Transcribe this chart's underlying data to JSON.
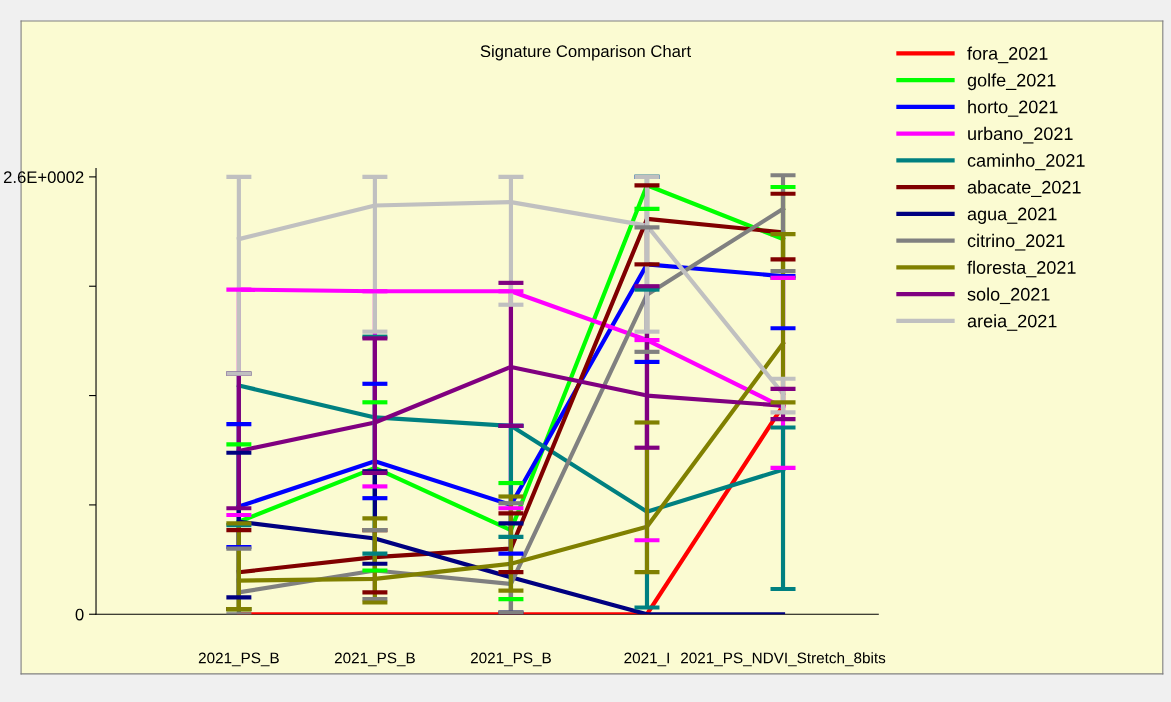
{
  "chart_data": {
    "type": "line",
    "title": "Signature Comparison Chart",
    "categories": [
      "2021_PS_B",
      "2021_PS_B",
      "2021_PS_B",
      "2021_I",
      "2021_PS_NDVI_Stretch_8bits"
    ],
    "ylim": [
      0,
      265
    ],
    "yticks": [
      0,
      {
        "value": 65,
        "label": null
      },
      {
        "value": 130,
        "label": null
      },
      {
        "value": 195,
        "label": null
      },
      {
        "value": 260,
        "label": "2.6E+0002"
      }
    ],
    "grid": false,
    "legend": "top right",
    "series": [
      {
        "name": "fora_2021",
        "color": "#ff0000",
        "values": [
          0,
          0,
          0,
          0,
          124
        ],
        "errors": [
          null,
          null,
          null,
          null,
          null
        ]
      },
      {
        "name": "golfe_2021",
        "color": "#00ff00",
        "values": [
          55,
          87,
          50,
          255,
          223
        ],
        "errors": [
          [
            3,
            101
          ],
          [
            26,
            126
          ],
          [
            9,
            78
          ],
          [
            241,
            260
          ],
          [
            200,
            254
          ]
        ]
      },
      {
        "name": "horto_2021",
        "color": "#0000ff",
        "values": [
          64,
          91,
          65,
          208,
          201
        ],
        "errors": [
          [
            40,
            113
          ],
          [
            69,
            137
          ],
          [
            36,
            112
          ],
          [
            150,
            260
          ],
          [
            170,
            201
          ]
        ]
      },
      {
        "name": "urbano_2021",
        "color": "#ff00ff",
        "values": [
          193,
          192,
          192,
          163,
          123
        ],
        "errors": [
          [
            59,
            193
          ],
          [
            76,
            192
          ],
          [
            63,
            192
          ],
          [
            44,
            163
          ],
          [
            87,
            200
          ]
        ]
      },
      {
        "name": "caminho_2021",
        "color": "#008080",
        "values": [
          136,
          117,
          112,
          61,
          86
        ],
        "errors": [
          [
            53,
            143
          ],
          [
            36,
            165
          ],
          [
            46,
            112
          ],
          [
            4,
            193
          ],
          [
            15,
            111
          ]
        ]
      },
      {
        "name": "abacate_2021",
        "color": "#800000",
        "values": [
          25,
          34,
          39,
          235,
          227
        ],
        "errors": [
          [
            3,
            50
          ],
          [
            13,
            50
          ],
          [
            25,
            60
          ],
          [
            208,
            255
          ],
          [
            211,
            250
          ]
        ]
      },
      {
        "name": "agua_2021",
        "color": "#000080",
        "values": [
          55,
          45,
          22,
          0,
          0
        ],
        "errors": [
          [
            10,
            96
          ],
          [
            30,
            85
          ],
          [
            1,
            54
          ],
          null,
          null
        ]
      },
      {
        "name": "citrino_2021",
        "color": "#808080",
        "values": [
          13,
          26,
          18,
          190,
          241
        ],
        "errors": [
          [
            0,
            39
          ],
          [
            9,
            50
          ],
          [
            1,
            66
          ],
          [
            156,
            230
          ],
          [
            204,
            261
          ]
        ]
      },
      {
        "name": "floresta_2021",
        "color": "#808000",
        "values": [
          20,
          21,
          30,
          52,
          161
        ],
        "errors": [
          [
            3,
            54
          ],
          [
            7,
            57
          ],
          [
            14,
            70
          ],
          [
            25,
            114
          ],
          [
            126,
            226
          ]
        ]
      },
      {
        "name": "solo_2021",
        "color": "#800080",
        "values": [
          97,
          114,
          147,
          130,
          124
        ],
        "errors": [
          [
            63,
            143
          ],
          [
            84,
            164
          ],
          [
            112,
            197
          ],
          [
            99,
            195
          ],
          [
            116,
            134
          ]
        ]
      },
      {
        "name": "areia_2021",
        "color": "#c0c0c0",
        "values": [
          223,
          243,
          245,
          231,
          131
        ],
        "errors": [
          [
            143,
            260
          ],
          [
            168,
            260
          ],
          [
            184,
            260
          ],
          [
            168,
            260
          ],
          [
            120,
            140
          ]
        ]
      }
    ]
  }
}
